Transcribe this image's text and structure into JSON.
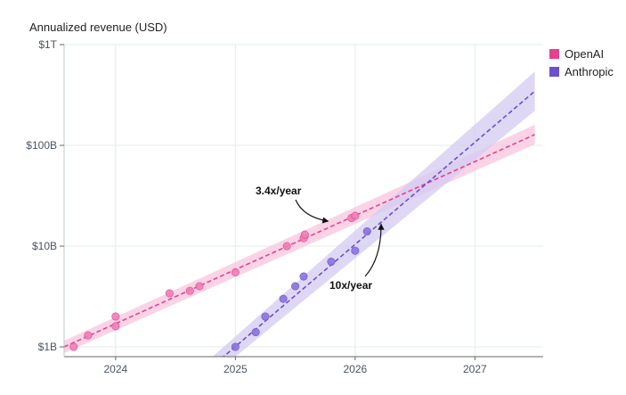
{
  "chart_data": {
    "type": "scatter",
    "title": "",
    "ylabel": "Annualized revenue (USD)",
    "xlabel": "",
    "y_scale": "log",
    "ylim": [
      800000000.0,
      1000000000000.0
    ],
    "xlim": [
      2023.57,
      2027.57
    ],
    "x_ticks": [
      2024,
      2025,
      2026,
      2027
    ],
    "x_tick_labels": [
      "2024",
      "2025",
      "2026",
      "2027"
    ],
    "y_ticks": [
      1000000000.0,
      10000000000.0,
      100000000000.0,
      1000000000000.0
    ],
    "y_tick_labels": [
      "$1B",
      "$10B",
      "$100B",
      "$1T"
    ],
    "grid": true,
    "legend_position": "right",
    "series": [
      {
        "name": "OpenAI",
        "color": "#e8408f",
        "point_color": "#ec7fb4",
        "band_color": "#f8c6dd",
        "points": [
          [
            2023.65,
            1000000000.0
          ],
          [
            2023.77,
            1300000000.0
          ],
          [
            2024.0,
            2000000000.0
          ],
          [
            2024.0,
            1600000000.0
          ],
          [
            2024.45,
            3400000000.0
          ],
          [
            2024.62,
            3600000000.0
          ],
          [
            2024.7,
            4000000000.0
          ],
          [
            2025.0,
            5500000000.0
          ],
          [
            2025.43,
            10000000000.0
          ],
          [
            2025.57,
            12000000000.0
          ],
          [
            2025.58,
            13000000000.0
          ],
          [
            2025.97,
            19000000000.0
          ],
          [
            2026.0,
            20000000000.0
          ]
        ],
        "trend": {
          "start": [
            2023.57,
            1000000000.0
          ],
          "end": [
            2027.5,
            128000000000.0
          ],
          "growth_label": "3.4x/year"
        }
      },
      {
        "name": "Anthropic",
        "color": "#6a4fcf",
        "point_color": "#8a73dc",
        "band_color": "#d3cbf1",
        "points": [
          [
            2025.0,
            1000000000.0
          ],
          [
            2025.17,
            1400000000.0
          ],
          [
            2025.25,
            2000000000.0
          ],
          [
            2025.4,
            3000000000.0
          ],
          [
            2025.5,
            4000000000.0
          ],
          [
            2025.57,
            5000000000.0
          ],
          [
            2025.8,
            7000000000.0
          ],
          [
            2026.0,
            9000000000.0
          ],
          [
            2026.1,
            14000000000.0
          ]
        ],
        "trend": {
          "start": [
            2024.7,
            500000000.0
          ],
          "end": [
            2027.5,
            345000000000.0
          ],
          "growth_label": "10x/year"
        }
      }
    ],
    "annotations": [
      {
        "text": "3.4x/year",
        "series": "OpenAI"
      },
      {
        "text": "10x/year",
        "series": "Anthropic"
      }
    ]
  },
  "legend": {
    "items": [
      {
        "label": "OpenAI",
        "color": "#e8408f"
      },
      {
        "label": "Anthropic",
        "color": "#6a4fcf"
      }
    ]
  }
}
